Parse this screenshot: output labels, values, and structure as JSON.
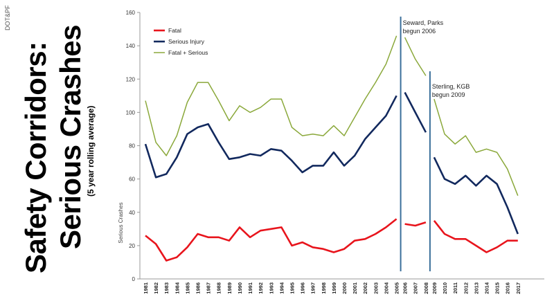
{
  "side_credit": "DOT&PF",
  "title_line1": "Safety Corridors:",
  "title_line2": "Serious Crashes",
  "subtitle": "(5 year rolling average)",
  "chart_data": {
    "type": "line",
    "ylabel": "Serious Crashes",
    "ylim": [
      0,
      160
    ],
    "yticks": [
      0,
      20,
      40,
      60,
      80,
      100,
      120,
      140,
      160
    ],
    "grid": false,
    "legend_position": "top-left",
    "x": [
      "1981",
      "1982",
      "1983",
      "1984",
      "1985",
      "1986",
      "1987",
      "1988",
      "1989",
      "1990",
      "1991",
      "1992",
      "1993",
      "1994",
      "1995",
      "1996",
      "1997",
      "1998",
      "1999",
      "2000",
      "2001",
      "2002",
      "2003",
      "2004",
      "2005",
      "2006",
      "2007",
      "2008",
      "2009",
      "2010",
      "2011",
      "2012",
      "2013",
      "2014",
      "2015",
      "2016",
      "2017"
    ],
    "groups": [
      {
        "start": 0,
        "end": 24
      },
      {
        "start": 25,
        "end": 27
      },
      {
        "start": 28,
        "end": 36
      }
    ],
    "series": [
      {
        "name": "Fatal",
        "color": "#e8141c",
        "values": [
          26,
          21,
          11,
          13,
          19,
          27,
          25,
          25,
          23,
          31,
          25,
          29,
          30,
          31,
          20,
          22,
          19,
          18,
          16,
          18,
          23,
          24,
          27,
          31,
          36,
          33,
          32,
          34,
          35,
          27,
          24,
          24,
          20,
          16,
          19,
          23,
          23
        ]
      },
      {
        "name": "Serious Injury",
        "color": "#12295e",
        "values": [
          81,
          61,
          63,
          73,
          87,
          91,
          93,
          82,
          72,
          73,
          75,
          74,
          78,
          77,
          71,
          64,
          68,
          68,
          76,
          68,
          74,
          84,
          91,
          98,
          110,
          112,
          100,
          88,
          73,
          60,
          57,
          62,
          56,
          62,
          57,
          43,
          27
        ]
      },
      {
        "name": "Fatal + Serious",
        "color": "#8aa83a",
        "values": [
          107,
          82,
          74,
          86,
          106,
          118,
          118,
          107,
          95,
          104,
          100,
          103,
          108,
          108,
          91,
          86,
          87,
          86,
          92,
          86,
          97,
          108,
          118,
          129,
          146,
          145,
          132,
          122,
          108,
          87,
          81,
          86,
          76,
          78,
          76,
          66,
          50
        ]
      }
    ],
    "annotations": [
      {
        "line1": "Seward, Parks",
        "line2": "begun 2006"
      },
      {
        "line1": "Sterling, KGB",
        "line2": "begun 2009"
      }
    ],
    "divider_color": "#3a6f9a"
  }
}
